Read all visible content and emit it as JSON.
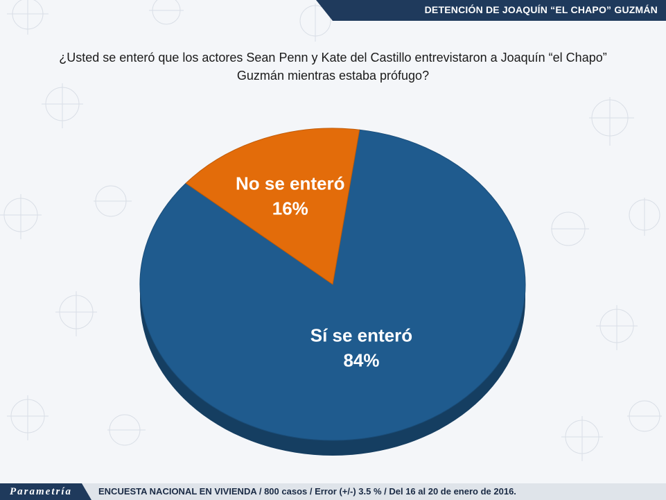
{
  "header": {
    "title": "DETENCIÓN DE JOAQUÍN “EL CHAPO” GUZMÁN"
  },
  "question": {
    "line1": "¿Usted se enteró que los actores Sean Penn y Kate del Castillo entrevistaron a Joaquín “el Chapo”",
    "line2": "Guzmán mientras estaba prófugo?"
  },
  "chart_data": {
    "type": "pie",
    "style": "3d",
    "title": "",
    "slices": [
      {
        "label": "Sí se enteró",
        "value": 84,
        "value_label": "84%",
        "color": "#1f5b8e"
      },
      {
        "label": "No se enteró",
        "value": 16,
        "value_label": "16%",
        "color": "#e36c0a"
      }
    ],
    "legend": "none"
  },
  "footer": {
    "brand": "Parametría",
    "note": "ENCUESTA NACIONAL EN VIVIENDA / 800 casos / Error (+/-) 3.5 % / Del 16 al 20 de enero de 2016."
  },
  "colors": {
    "header": "#1f3a5c",
    "background": "#f4f6f9",
    "text": "#ffffff"
  }
}
